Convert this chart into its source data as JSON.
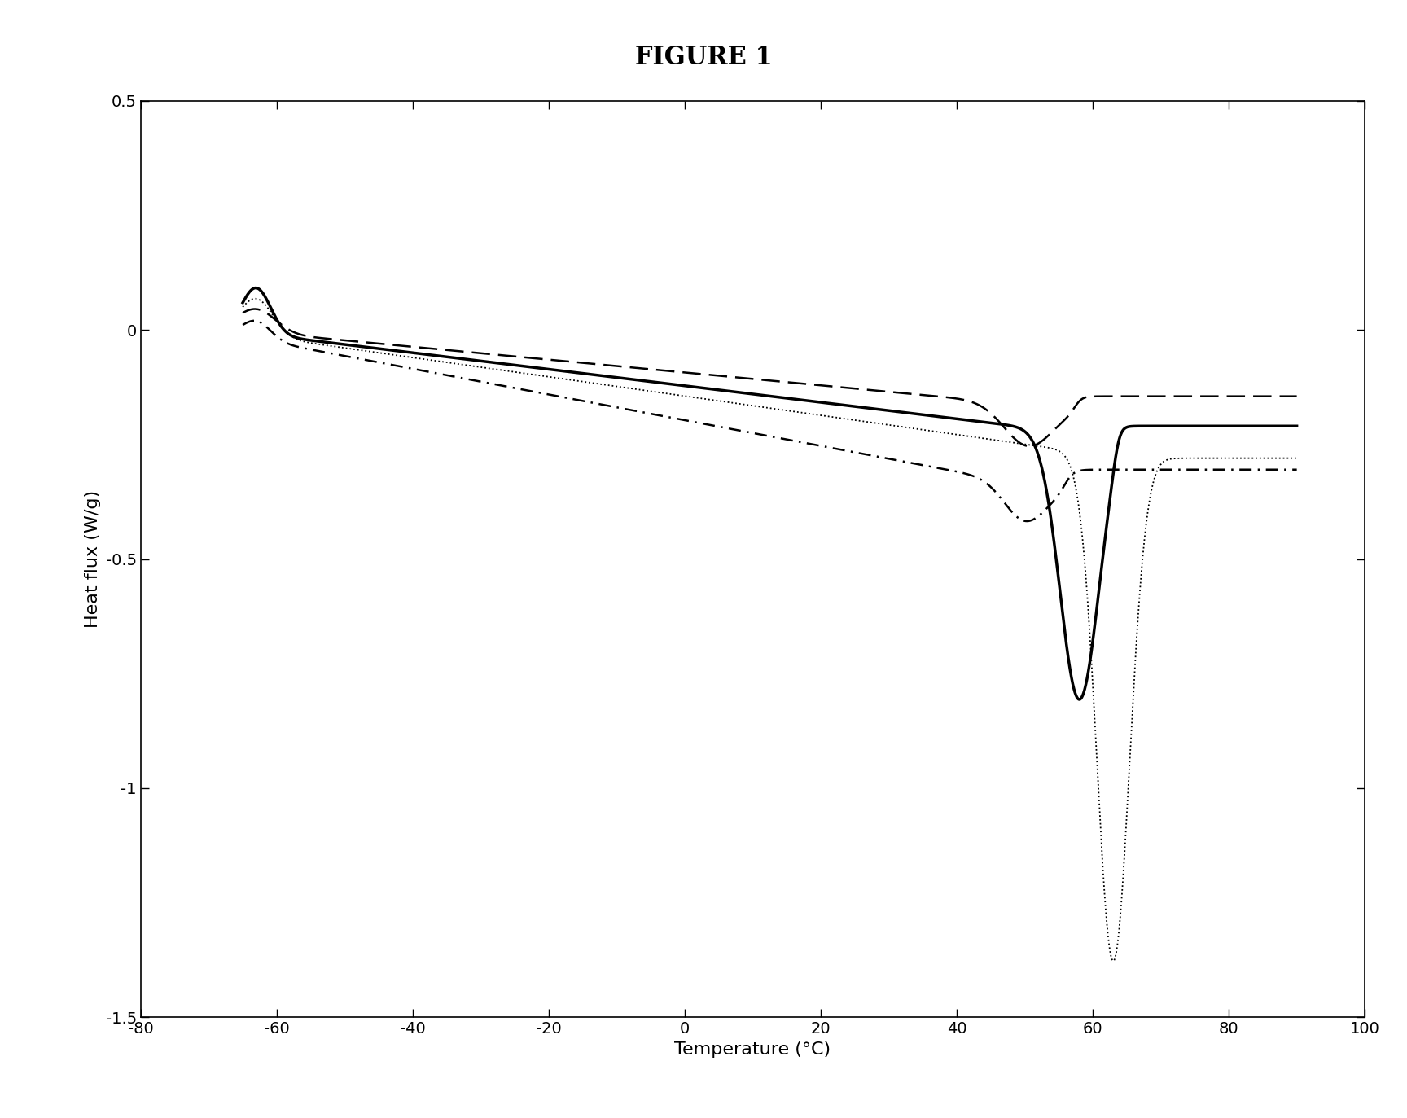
{
  "title": "FIGURE 1",
  "xlabel": "Temperature (°C)",
  "ylabel": "Heat flux (W/g)",
  "xlim": [
    -80,
    100
  ],
  "ylim": [
    -1.5,
    0.5
  ],
  "xticks": [
    -80,
    -60,
    -40,
    -20,
    0,
    20,
    40,
    60,
    80,
    100
  ],
  "yticks": [
    -1.5,
    -1.0,
    -0.5,
    0.0,
    0.5
  ],
  "background_color": "#ffffff",
  "line_color": "#000000",
  "title_fontsize": 22,
  "axis_label_fontsize": 16,
  "tick_fontsize": 14,
  "curve1_label": "solid",
  "curve1_lw": 2.5,
  "curve1_ls": "-",
  "curve2_label": "dashed",
  "curve2_lw": 1.8,
  "curve3_label": "dotted",
  "curve3_lw": 1.3,
  "curve4_label": "dashdot",
  "curve4_lw": 1.8
}
